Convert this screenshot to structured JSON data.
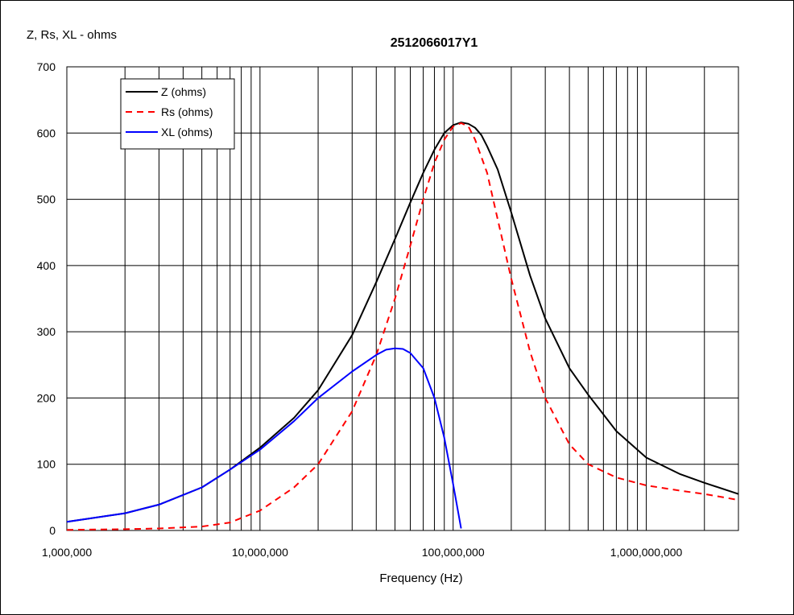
{
  "chart_data": {
    "type": "line",
    "title": "2512066017Y1",
    "ylabel": "Z, Rs, XL - ohms",
    "xlabel": "Frequency (Hz)",
    "x_scale": "log",
    "xlim": [
      1000000,
      3000000000
    ],
    "ylim": [
      0,
      700
    ],
    "grid": true,
    "legend_position": "top-left",
    "x_tick_values": [
      1000000,
      10000000,
      100000000,
      1000000000
    ],
    "x_tick_labels": [
      "1,000,000",
      "10,000,000",
      "100,000,000",
      "1,000,000,000"
    ],
    "y_tick_values": [
      0,
      100,
      200,
      300,
      400,
      500,
      600,
      700
    ],
    "y_tick_labels": [
      "0",
      "100",
      "200",
      "300",
      "400",
      "500",
      "600",
      "700"
    ],
    "series": [
      {
        "name": "Z (ohms)",
        "color": "#000000",
        "style": "solid",
        "points": [
          [
            1000000,
            13
          ],
          [
            2000000,
            26
          ],
          [
            3000000,
            39
          ],
          [
            5000000,
            65
          ],
          [
            7000000,
            92
          ],
          [
            10000000,
            125
          ],
          [
            15000000,
            170
          ],
          [
            20000000,
            212
          ],
          [
            30000000,
            295
          ],
          [
            40000000,
            375
          ],
          [
            50000000,
            440
          ],
          [
            60000000,
            495
          ],
          [
            70000000,
            540
          ],
          [
            80000000,
            575
          ],
          [
            90000000,
            600
          ],
          [
            100000000,
            612
          ],
          [
            110000000,
            616
          ],
          [
            120000000,
            614
          ],
          [
            130000000,
            608
          ],
          [
            140000000,
            597
          ],
          [
            150000000,
            580
          ],
          [
            170000000,
            545
          ],
          [
            200000000,
            480
          ],
          [
            250000000,
            385
          ],
          [
            300000000,
            320
          ],
          [
            400000000,
            245
          ],
          [
            500000000,
            205
          ],
          [
            700000000,
            150
          ],
          [
            1000000000,
            110
          ],
          [
            1500000000,
            85
          ],
          [
            2000000000,
            72
          ],
          [
            3000000000,
            55
          ]
        ]
      },
      {
        "name": "Rs (ohms)",
        "color": "#ff0000",
        "style": "dashed",
        "points": [
          [
            1000000,
            1
          ],
          [
            2000000,
            2
          ],
          [
            3000000,
            3
          ],
          [
            5000000,
            6
          ],
          [
            7000000,
            12
          ],
          [
            10000000,
            30
          ],
          [
            15000000,
            65
          ],
          [
            20000000,
            100
          ],
          [
            30000000,
            180
          ],
          [
            40000000,
            265
          ],
          [
            50000000,
            350
          ],
          [
            60000000,
            430
          ],
          [
            70000000,
            500
          ],
          [
            80000000,
            555
          ],
          [
            90000000,
            590
          ],
          [
            100000000,
            610
          ],
          [
            110000000,
            615
          ],
          [
            120000000,
            610
          ],
          [
            130000000,
            590
          ],
          [
            150000000,
            540
          ],
          [
            170000000,
            470
          ],
          [
            200000000,
            380
          ],
          [
            250000000,
            270
          ],
          [
            300000000,
            200
          ],
          [
            400000000,
            130
          ],
          [
            500000000,
            100
          ],
          [
            700000000,
            80
          ],
          [
            1000000000,
            68
          ],
          [
            1500000000,
            60
          ],
          [
            2000000000,
            55
          ],
          [
            3000000000,
            46
          ]
        ]
      },
      {
        "name": "XL (ohms)",
        "color": "#0000ff",
        "style": "solid",
        "points": [
          [
            1000000,
            13
          ],
          [
            2000000,
            26
          ],
          [
            3000000,
            39
          ],
          [
            5000000,
            65
          ],
          [
            7000000,
            92
          ],
          [
            10000000,
            122
          ],
          [
            15000000,
            165
          ],
          [
            20000000,
            200
          ],
          [
            30000000,
            240
          ],
          [
            40000000,
            265
          ],
          [
            45000000,
            273
          ],
          [
            50000000,
            275
          ],
          [
            55000000,
            274
          ],
          [
            60000000,
            268
          ],
          [
            70000000,
            245
          ],
          [
            80000000,
            200
          ],
          [
            90000000,
            140
          ],
          [
            100000000,
            70
          ],
          [
            110000000,
            3
          ]
        ]
      }
    ]
  }
}
